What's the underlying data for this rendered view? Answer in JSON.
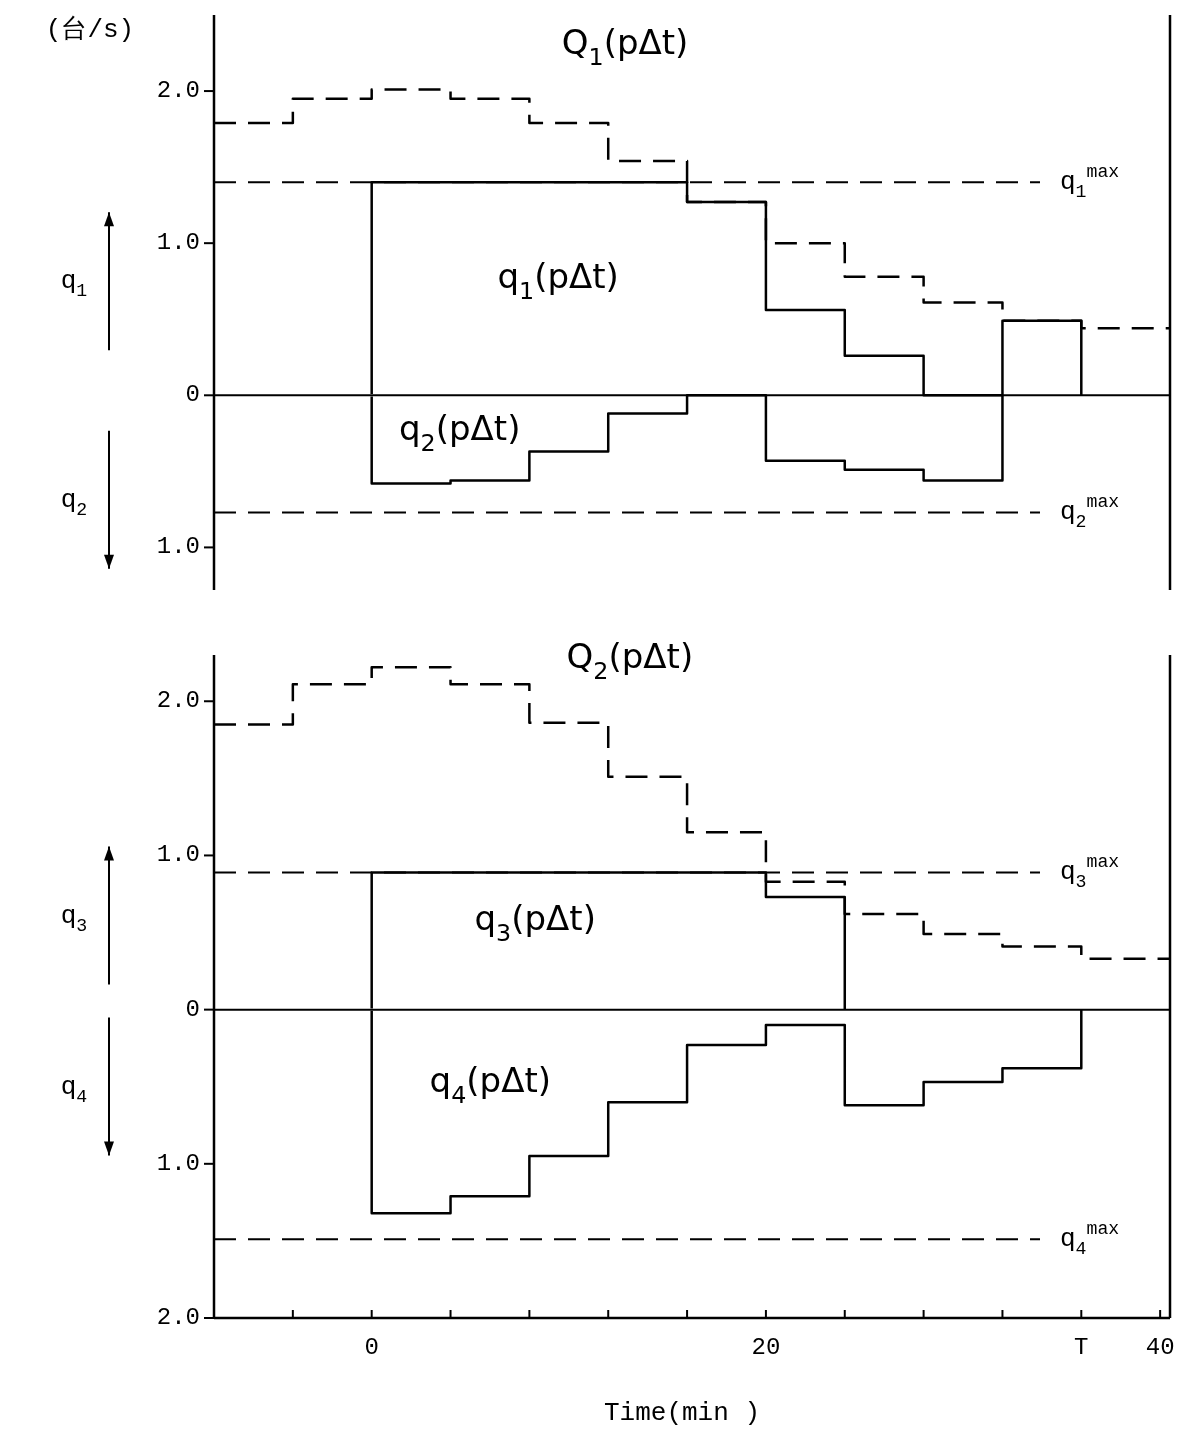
{
  "chart_data": [
    {
      "type": "step",
      "ylabel": "(台/s)",
      "xlim": [
        -8,
        40.5
      ],
      "ylim": [
        -1.28,
        2.5
      ],
      "yticks": [
        {
          "value": -1,
          "label": "1.0"
        },
        0,
        {
          "value": 1,
          "label": "1.0"
        },
        {
          "value": 2,
          "label": "2.0"
        }
      ],
      "tick_labels": "y",
      "series": [
        {
          "color": "#000000",
          "line_style": "dashed",
          "x": [
            -8,
            -4,
            0,
            4,
            8,
            12,
            16,
            20,
            24,
            28,
            32,
            36,
            40.5
          ],
          "values": [
            1.79,
            1.95,
            2.01,
            1.95,
            1.79,
            1.54,
            1.27,
            1.0,
            0.78,
            0.61,
            0.49,
            0.44,
            0.44
          ]
        },
        {
          "color": "#000000",
          "line_style": "solid",
          "x": [
            0,
            0,
            4,
            8,
            12,
            16,
            20,
            24,
            28,
            32,
            36
          ],
          "values": [
            0,
            1.4,
            1.4,
            1.4,
            1.4,
            1.27,
            0.56,
            0.26,
            0,
            0.49,
            0
          ]
        },
        {
          "color": "#000000",
          "line_style": "solid",
          "x": [
            0,
            0,
            4,
            8,
            12,
            16,
            20,
            24,
            28,
            32
          ],
          "values": [
            0,
            -0.58,
            -0.56,
            -0.37,
            -0.12,
            0,
            -0.43,
            -0.49,
            -0.56,
            0
          ]
        }
      ],
      "ref_lines": [
        {
          "axis": "y",
          "value": 0,
          "label": null,
          "line_style": "solid"
        },
        {
          "axis": "y",
          "value": 1.4,
          "label": "q$_{1}$$^{max}$",
          "line_style": "dashed"
        },
        {
          "axis": "y",
          "value": -0.77,
          "label": "q$_{2}$$^{max}$",
          "line_style": "dashed"
        }
      ],
      "annotations": [
        "Q$_{1}$(pΔt)",
        "q$_{1}$(pΔt)",
        "q$_{2}$(pΔt)",
        "q$_{1}$",
        "q$_{2}$"
      ]
    },
    {
      "type": "step",
      "xlabel": "Time(min )",
      "xlim": [
        -8,
        40.5
      ],
      "xticks": [
        {
          "value": -4,
          "label": null
        },
        {
          "value": 0,
          "label": "0"
        },
        {
          "value": 4,
          "label": null
        },
        {
          "value": 8,
          "label": null
        },
        {
          "value": 12,
          "label": null
        },
        {
          "value": 16,
          "label": null
        },
        {
          "value": 20,
          "label": "20"
        },
        {
          "value": 24,
          "label": null
        },
        {
          "value": 28,
          "label": null
        },
        {
          "value": 32,
          "label": null
        },
        {
          "value": 36,
          "label": "T"
        },
        {
          "value": 40,
          "label": "40"
        }
      ],
      "ylim": [
        -2.0,
        2.3
      ],
      "yticks": [
        {
          "value": -2,
          "label": "2.0"
        },
        {
          "value": -1,
          "label": "1.0"
        },
        0,
        {
          "value": 1,
          "label": "1.0"
        },
        {
          "value": 2,
          "label": "2.0"
        }
      ],
      "series": [
        {
          "color": "#000000",
          "line_style": "dashed",
          "x": [
            -8,
            -4,
            0,
            4,
            8,
            12,
            16,
            20,
            24,
            28,
            32,
            36,
            40.5
          ],
          "values": [
            1.85,
            2.11,
            2.22,
            2.11,
            1.86,
            1.51,
            1.15,
            0.83,
            0.62,
            0.49,
            0.41,
            0.33,
            0.33
          ]
        },
        {
          "color": "#000000",
          "line_style": "solid",
          "x": [
            0,
            0,
            4,
            8,
            12,
            16,
            20,
            24
          ],
          "values": [
            0,
            0.89,
            0.89,
            0.89,
            0.89,
            0.89,
            0.73,
            0
          ]
        },
        {
          "color": "#000000",
          "line_style": "solid",
          "x": [
            0,
            0,
            4,
            8,
            12,
            16,
            20,
            24,
            28,
            32,
            36
          ],
          "values": [
            0,
            -1.32,
            -1.21,
            -0.95,
            -0.6,
            -0.23,
            -0.1,
            -0.62,
            -0.47,
            -0.38,
            0
          ]
        }
      ],
      "ref_lines": [
        {
          "axis": "y",
          "value": 0,
          "label": null,
          "line_style": "solid"
        },
        {
          "axis": "y",
          "value": 0.89,
          "label": "q$_{3}$$^{max}$",
          "line_style": "dashed"
        },
        {
          "axis": "y",
          "value": -1.49,
          "label": "q$_{4}$$^{max}$",
          "line_style": "dashed"
        }
      ],
      "annotations": [
        "Q$_{2}$(pΔt)",
        "q$_{3}$(pΔt)",
        "q$_{4}$(pΔt)",
        "q$_{3}$",
        "q$_{4}$"
      ]
    }
  ]
}
